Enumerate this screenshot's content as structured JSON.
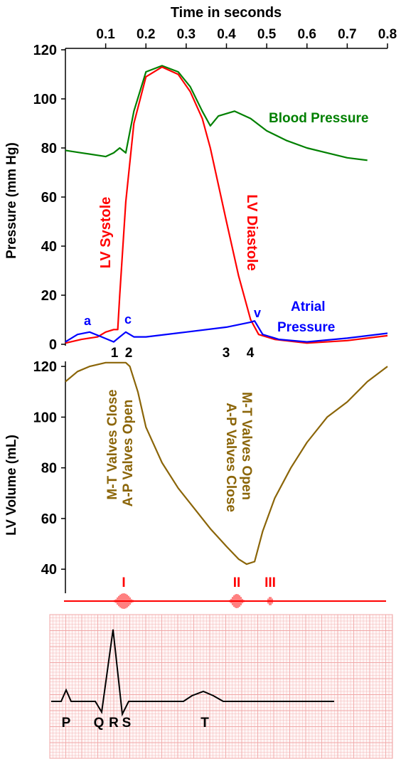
{
  "chart_data": [
    {
      "type": "line",
      "title": "",
      "xlabel": "Time in seconds",
      "ylabel": "Pressure (mm Hg)",
      "xlim": [
        0,
        0.8
      ],
      "ylim": [
        0,
        120
      ],
      "x_ticks": [
        "0.1",
        "0.2",
        "0.3",
        "0.4",
        "0.5",
        "0.6",
        "0.7",
        "0.8"
      ],
      "y_ticks": [
        "0",
        "20",
        "40",
        "60",
        "80",
        "100",
        "120"
      ],
      "series": [
        {
          "name": "Blood Pressure",
          "color": "#008000",
          "x": [
            0,
            0.04,
            0.08,
            0.1,
            0.12,
            0.135,
            0.15,
            0.17,
            0.2,
            0.24,
            0.28,
            0.31,
            0.34,
            0.36,
            0.38,
            0.42,
            0.46,
            0.5,
            0.55,
            0.6,
            0.65,
            0.7,
            0.75
          ],
          "y": [
            79,
            78,
            77,
            76.5,
            78,
            80,
            78,
            95,
            111,
            113.5,
            111,
            105,
            95,
            89,
            93,
            95,
            92,
            87,
            83,
            80,
            78,
            76,
            75
          ]
        },
        {
          "name": "LV",
          "color": "#ff0000",
          "x": [
            0,
            0.04,
            0.08,
            0.1,
            0.12,
            0.13,
            0.135,
            0.15,
            0.17,
            0.2,
            0.24,
            0.28,
            0.31,
            0.34,
            0.36,
            0.4,
            0.43,
            0.46,
            0.48,
            0.52,
            0.6,
            0.7,
            0.8
          ],
          "y": [
            0.5,
            2,
            3,
            5,
            6,
            6,
            20,
            58,
            90,
            109,
            113,
            110,
            103,
            92,
            80,
            50,
            28,
            10,
            4,
            2,
            0.5,
            1.5,
            3.5
          ]
        },
        {
          "name": "Atrial Pressure",
          "color": "#0000ff",
          "x": [
            0,
            0.03,
            0.06,
            0.09,
            0.12,
            0.135,
            0.15,
            0.17,
            0.2,
            0.3,
            0.4,
            0.46,
            0.47,
            0.49,
            0.53,
            0.6,
            0.7,
            0.8
          ],
          "y": [
            1,
            4,
            5,
            3,
            1,
            3,
            5,
            3,
            3,
            5,
            7,
            9,
            9.5,
            4,
            2,
            1,
            2.5,
            4.5
          ]
        }
      ],
      "annotations": [
        "LV Systole",
        "LV Diastole",
        "Atrial",
        "Pressure",
        "a",
        "c",
        "v",
        "1",
        "2",
        "3",
        "4"
      ]
    },
    {
      "type": "line",
      "title": "",
      "xlabel": "",
      "ylabel": "LV Volume (mL)",
      "xlim": [
        0,
        0.8
      ],
      "ylim": [
        35,
        122
      ],
      "y_ticks": [
        "40",
        "60",
        "80",
        "100",
        "120"
      ],
      "series": [
        {
          "name": "",
          "color": "#8b6508",
          "x": [
            0,
            0.03,
            0.06,
            0.1,
            0.12,
            0.15,
            0.16,
            0.18,
            0.2,
            0.24,
            0.28,
            0.32,
            0.36,
            0.4,
            0.43,
            0.45,
            0.47,
            0.49,
            0.52,
            0.56,
            0.6,
            0.65,
            0.7,
            0.75,
            0.8
          ],
          "y": [
            114,
            118,
            120,
            121.5,
            121.5,
            121.5,
            120,
            110,
            96,
            82,
            72,
            64,
            56,
            49,
            44,
            42,
            43,
            55,
            68,
            80,
            90,
            100,
            106,
            114,
            120
          ]
        }
      ],
      "annotations": [
        "M-T Valves Close",
        "A-P Valves Open",
        "M-T Valves Open",
        "A-P Valves Close"
      ]
    }
  ],
  "heart_sounds": [
    "I",
    "II",
    "III"
  ],
  "ecg": {
    "waves": [
      "P",
      "Q",
      "R",
      "S",
      "T"
    ],
    "grid_color": "#f0a8a8",
    "trace_color": "#000000"
  },
  "colors": {
    "arterial": "#008000",
    "lv": "#ff0000",
    "atrial": "#0000ff",
    "volume": "#8b6508",
    "sound": "#ff0000"
  }
}
